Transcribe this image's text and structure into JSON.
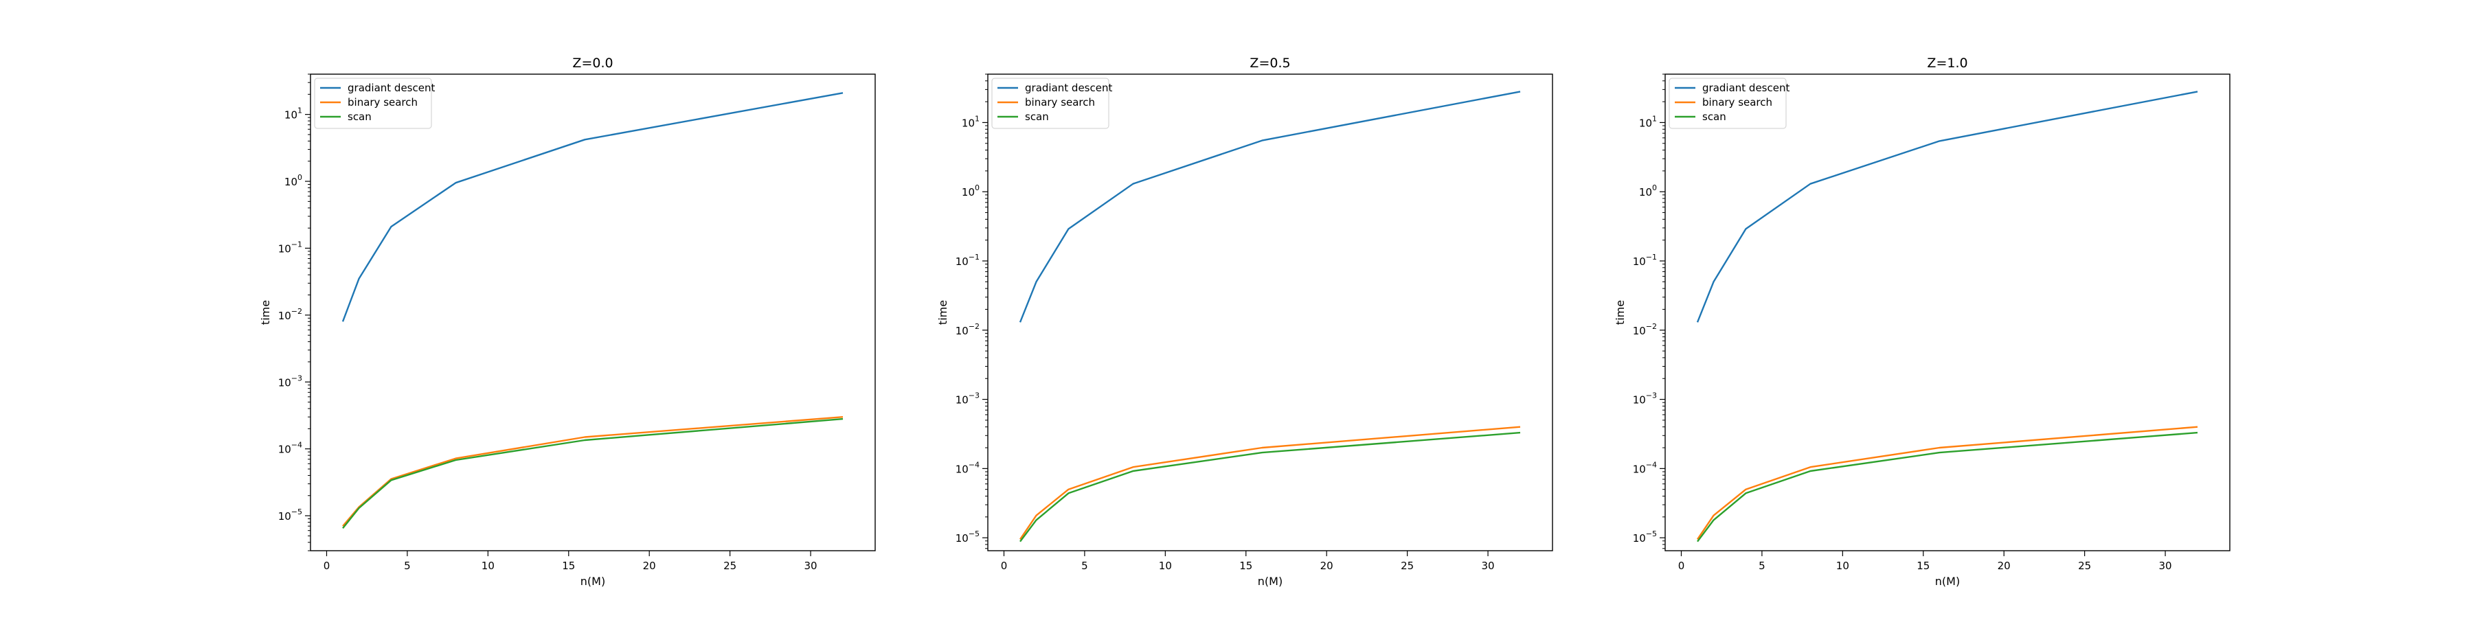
{
  "chart_data": [
    {
      "type": "line",
      "title": "Z=0.0",
      "xlabel": "n(M)",
      "ylabel": "time",
      "yscale": "log",
      "xlim": [
        -1.0,
        34.0
      ],
      "ylim": [
        3e-06,
        40
      ],
      "xticks": [
        0,
        5,
        10,
        15,
        20,
        25,
        30
      ],
      "yticks": [
        {
          "value": 1e-05,
          "base": "10",
          "exp": "−5"
        },
        {
          "value": 0.0001,
          "base": "10",
          "exp": "−4"
        },
        {
          "value": 0.001,
          "base": "10",
          "exp": "−3"
        },
        {
          "value": 0.01,
          "base": "10",
          "exp": "−2"
        },
        {
          "value": 0.1,
          "base": "10",
          "exp": "−1"
        },
        {
          "value": 1,
          "base": "10",
          "exp": "0"
        },
        {
          "value": 10,
          "base": "10",
          "exp": "1"
        }
      ],
      "legend_position": "upper-left",
      "x": [
        1,
        2,
        4,
        8,
        16,
        32
      ],
      "series": [
        {
          "name": "gradiant descent",
          "color": "#1f77b4",
          "values": [
            0.008,
            0.035,
            0.21,
            0.95,
            4.2,
            21
          ]
        },
        {
          "name": "binary search",
          "color": "#ff7f0e",
          "values": [
            7e-06,
            1.35e-05,
            3.55e-05,
            7.2e-05,
            0.00015,
            0.0003
          ]
        },
        {
          "name": "scan",
          "color": "#2ca02c",
          "values": [
            6.5e-06,
            1.3e-05,
            3.4e-05,
            6.8e-05,
            0.000135,
            0.00028
          ]
        }
      ]
    },
    {
      "type": "line",
      "title": "Z=0.5",
      "xlabel": "n(M)",
      "ylabel": "time",
      "yscale": "log",
      "xlim": [
        -1.0,
        34.0
      ],
      "ylim": [
        6.5e-06,
        50
      ],
      "xticks": [
        0,
        5,
        10,
        15,
        20,
        25,
        30
      ],
      "yticks": [
        {
          "value": 1e-05,
          "base": "10",
          "exp": "−5"
        },
        {
          "value": 0.0001,
          "base": "10",
          "exp": "−4"
        },
        {
          "value": 0.001,
          "base": "10",
          "exp": "−3"
        },
        {
          "value": 0.01,
          "base": "10",
          "exp": "−2"
        },
        {
          "value": 0.1,
          "base": "10",
          "exp": "−1"
        },
        {
          "value": 1,
          "base": "10",
          "exp": "0"
        },
        {
          "value": 10,
          "base": "10",
          "exp": "1"
        }
      ],
      "legend_position": "upper-left",
      "x": [
        1,
        2,
        4,
        8,
        16,
        32
      ],
      "series": [
        {
          "name": "gradiant descent",
          "color": "#1f77b4",
          "values": [
            0.013,
            0.05,
            0.29,
            1.3,
            5.5,
            28
          ]
        },
        {
          "name": "binary search",
          "color": "#ff7f0e",
          "values": [
            9.5e-06,
            2.1e-05,
            5e-05,
            0.000105,
            0.0002,
            0.0004
          ]
        },
        {
          "name": "scan",
          "color": "#2ca02c",
          "values": [
            8.8e-06,
            1.8e-05,
            4.4e-05,
            9.2e-05,
            0.00017,
            0.00033
          ]
        }
      ]
    },
    {
      "type": "line",
      "title": "Z=1.0",
      "xlabel": "n(M)",
      "ylabel": "time",
      "yscale": "log",
      "xlim": [
        -1.0,
        34.0
      ],
      "ylim": [
        6.5e-06,
        50
      ],
      "xticks": [
        0,
        5,
        10,
        15,
        20,
        25,
        30
      ],
      "yticks": [
        {
          "value": 1e-05,
          "base": "10",
          "exp": "−5"
        },
        {
          "value": 0.0001,
          "base": "10",
          "exp": "−4"
        },
        {
          "value": 0.001,
          "base": "10",
          "exp": "−3"
        },
        {
          "value": 0.01,
          "base": "10",
          "exp": "−2"
        },
        {
          "value": 0.1,
          "base": "10",
          "exp": "−1"
        },
        {
          "value": 1,
          "base": "10",
          "exp": "0"
        },
        {
          "value": 10,
          "base": "10",
          "exp": "1"
        }
      ],
      "legend_position": "upper-left",
      "x": [
        1,
        2,
        4,
        8,
        16,
        32
      ],
      "series": [
        {
          "name": "gradiant descent",
          "color": "#1f77b4",
          "values": [
            0.013,
            0.05,
            0.29,
            1.3,
            5.4,
            28
          ]
        },
        {
          "name": "binary search",
          "color": "#ff7f0e",
          "values": [
            9.5e-06,
            2.1e-05,
            5e-05,
            0.000105,
            0.0002,
            0.0004
          ]
        },
        {
          "name": "scan",
          "color": "#2ca02c",
          "values": [
            8.8e-06,
            1.8e-05,
            4.4e-05,
            9.2e-05,
            0.00017,
            0.00033
          ]
        }
      ]
    }
  ]
}
